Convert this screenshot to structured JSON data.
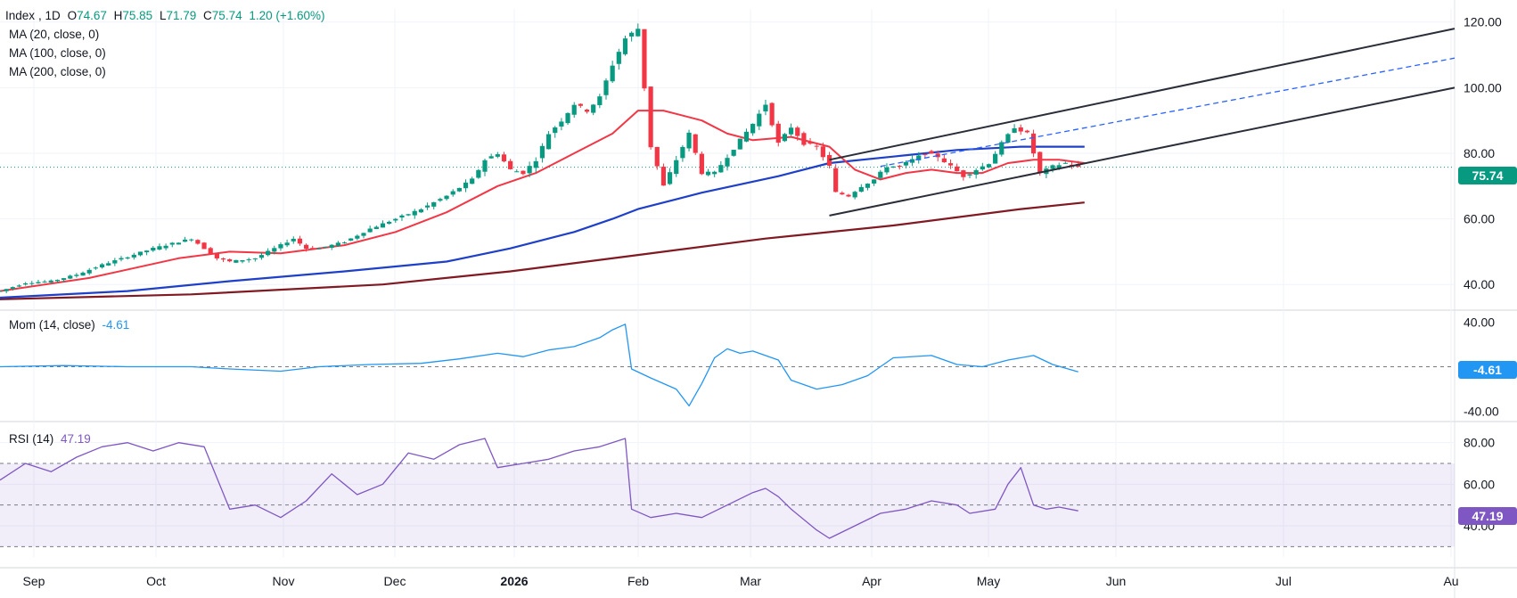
{
  "symbol": "Index",
  "interval": "1D",
  "ohlc": {
    "open_label": "O",
    "open": "74.67",
    "high_label": "H",
    "high": "75.85",
    "low_label": "L",
    "low": "71.79",
    "close_label": "C",
    "close": "75.74",
    "change": "1.20 (+1.60%)"
  },
  "indicators": {
    "ma20": "MA (20, close, 0)",
    "ma100": "MA (100, close, 0)",
    "ma200": "MA (200, close, 0)",
    "mom_label": "Mom (14, close)",
    "mom_value": "-4.61",
    "rsi_label": "RSI (14)",
    "rsi_value": "47.19"
  },
  "price_label": "75.74",
  "mom_label_value": "-4.61",
  "rsi_label_value": "47.19",
  "colors": {
    "up": "#089981",
    "down": "#f23645",
    "ma20": "#f23645",
    "ma100": "#1e40c8",
    "ma200": "#801922",
    "momentum": "#2196f3",
    "rsi": "#7e57c2",
    "channel": "#2a2e39",
    "channel_mid": "#2962ff"
  },
  "chart_data": [
    {
      "type": "candlestick",
      "name": "Index",
      "x_axis_labels": [
        "Sep",
        "Oct",
        "Nov",
        "Dec",
        "2026",
        "Feb",
        "Mar",
        "Apr",
        "May",
        "Jun",
        "Jul",
        "Au"
      ],
      "y_ticks": [
        40,
        60,
        80,
        100,
        120
      ],
      "ylim": [
        33,
        124
      ],
      "last_close": 75.74,
      "price_series": [
        [
          0,
          38
        ],
        [
          4,
          40.5
        ],
        [
          8,
          41
        ],
        [
          12,
          43
        ],
        [
          16,
          46
        ],
        [
          20,
          48.5
        ],
        [
          24,
          51
        ],
        [
          28,
          53
        ],
        [
          30,
          54
        ],
        [
          32,
          51
        ],
        [
          34,
          48
        ],
        [
          36,
          47
        ],
        [
          40,
          48
        ],
        [
          42,
          50
        ],
        [
          44,
          52
        ],
        [
          46,
          54
        ],
        [
          48,
          51
        ],
        [
          50,
          51
        ],
        [
          54,
          53
        ],
        [
          58,
          57
        ],
        [
          62,
          60
        ],
        [
          66,
          63
        ],
        [
          70,
          67
        ],
        [
          74,
          72
        ],
        [
          76,
          78
        ],
        [
          78,
          80
        ],
        [
          80,
          75
        ],
        [
          82,
          74
        ],
        [
          84,
          78
        ],
        [
          86,
          86
        ],
        [
          88,
          90
        ],
        [
          90,
          95
        ],
        [
          92,
          93
        ],
        [
          94,
          97
        ],
        [
          96,
          107
        ],
        [
          98,
          115
        ],
        [
          100,
          118
        ],
        [
          102,
          82
        ],
        [
          104,
          70
        ],
        [
          106,
          78
        ],
        [
          108,
          86
        ],
        [
          110,
          74
        ],
        [
          112,
          74
        ],
        [
          114,
          79
        ],
        [
          116,
          84
        ],
        [
          118,
          89
        ],
        [
          120,
          95
        ],
        [
          122,
          83
        ],
        [
          124,
          88
        ],
        [
          126,
          83
        ],
        [
          128,
          82
        ],
        [
          130,
          76
        ],
        [
          131,
          68
        ],
        [
          133,
          67
        ],
        [
          135,
          70
        ],
        [
          137,
          72
        ],
        [
          139,
          76
        ],
        [
          141,
          76
        ],
        [
          143,
          78
        ],
        [
          145,
          80
        ],
        [
          147,
          79
        ],
        [
          149,
          76
        ],
        [
          151,
          73
        ],
        [
          153,
          75
        ],
        [
          155,
          77
        ],
        [
          157,
          83
        ],
        [
          159,
          88
        ],
        [
          161,
          86
        ],
        [
          163,
          74
        ],
        [
          165,
          76
        ],
        [
          167,
          77
        ],
        [
          169,
          75.7
        ]
      ],
      "x_index_range": [
        0,
        228
      ],
      "ma20": [
        [
          0,
          38
        ],
        [
          14,
          42
        ],
        [
          28,
          48
        ],
        [
          36,
          50
        ],
        [
          44,
          49.5
        ],
        [
          54,
          52
        ],
        [
          62,
          56
        ],
        [
          70,
          62
        ],
        [
          78,
          70
        ],
        [
          84,
          74
        ],
        [
          90,
          80
        ],
        [
          96,
          86
        ],
        [
          100,
          93
        ],
        [
          104,
          93
        ],
        [
          110,
          90
        ],
        [
          114,
          86
        ],
        [
          118,
          84
        ],
        [
          124,
          85
        ],
        [
          130,
          82
        ],
        [
          134,
          75
        ],
        [
          138,
          72
        ],
        [
          142,
          74
        ],
        [
          146,
          75
        ],
        [
          150,
          74
        ],
        [
          154,
          74
        ],
        [
          158,
          77
        ],
        [
          162,
          78
        ],
        [
          166,
          78
        ],
        [
          170,
          77
        ]
      ],
      "ma100": [
        [
          0,
          36
        ],
        [
          20,
          38
        ],
        [
          36,
          41
        ],
        [
          54,
          44
        ],
        [
          70,
          47
        ],
        [
          80,
          51
        ],
        [
          90,
          56
        ],
        [
          96,
          60
        ],
        [
          100,
          63
        ],
        [
          110,
          68
        ],
        [
          122,
          73
        ],
        [
          130,
          77
        ],
        [
          140,
          79
        ],
        [
          150,
          81
        ],
        [
          160,
          82
        ],
        [
          170,
          82
        ]
      ],
      "ma200": [
        [
          0,
          35.5
        ],
        [
          30,
          37
        ],
        [
          60,
          40
        ],
        [
          80,
          44
        ],
        [
          100,
          49
        ],
        [
          120,
          54
        ],
        [
          140,
          58
        ],
        [
          160,
          63
        ],
        [
          170,
          65
        ]
      ],
      "channel_upper": [
        [
          130,
          78
        ],
        [
          228,
          118
        ]
      ],
      "channel_lower": [
        [
          130,
          61
        ],
        [
          228,
          100
        ]
      ],
      "channel_mid_dashed": [
        [
          138,
          76
        ],
        [
          228,
          109
        ]
      ]
    },
    {
      "type": "line",
      "name": "Mom (14, close)",
      "y_ticks": [
        -40,
        40
      ],
      "ylim": [
        -45,
        45
      ],
      "last_value": -4.61,
      "values": [
        [
          0,
          0
        ],
        [
          10,
          1
        ],
        [
          20,
          0
        ],
        [
          30,
          0
        ],
        [
          36,
          -2
        ],
        [
          44,
          -4
        ],
        [
          50,
          0
        ],
        [
          58,
          2
        ],
        [
          66,
          3
        ],
        [
          72,
          7
        ],
        [
          78,
          12
        ],
        [
          82,
          9
        ],
        [
          86,
          15
        ],
        [
          90,
          18
        ],
        [
          94,
          26
        ],
        [
          96,
          33
        ],
        [
          98,
          38
        ],
        [
          99,
          -2
        ],
        [
          102,
          -10
        ],
        [
          106,
          -20
        ],
        [
          108,
          -35
        ],
        [
          110,
          -15
        ],
        [
          112,
          8
        ],
        [
          114,
          16
        ],
        [
          116,
          12
        ],
        [
          118,
          14
        ],
        [
          122,
          6
        ],
        [
          124,
          -12
        ],
        [
          128,
          -20
        ],
        [
          132,
          -16
        ],
        [
          136,
          -8
        ],
        [
          140,
          8
        ],
        [
          146,
          10
        ],
        [
          150,
          2
        ],
        [
          154,
          0
        ],
        [
          158,
          6
        ],
        [
          162,
          10
        ],
        [
          165,
          2
        ],
        [
          169,
          -4.61
        ]
      ]
    },
    {
      "type": "line",
      "name": "RSI (14)",
      "y_ticks": [
        40,
        60,
        80
      ],
      "bands": [
        30,
        50,
        70
      ],
      "ylim": [
        25,
        88
      ],
      "last_value": 47.19,
      "values": [
        [
          0,
          62
        ],
        [
          4,
          70
        ],
        [
          8,
          66
        ],
        [
          12,
          73
        ],
        [
          16,
          78
        ],
        [
          20,
          80
        ],
        [
          24,
          76
        ],
        [
          28,
          80
        ],
        [
          32,
          78
        ],
        [
          36,
          48
        ],
        [
          40,
          50
        ],
        [
          44,
          44
        ],
        [
          48,
          52
        ],
        [
          52,
          65
        ],
        [
          56,
          55
        ],
        [
          60,
          60
        ],
        [
          64,
          75
        ],
        [
          68,
          72
        ],
        [
          72,
          79
        ],
        [
          76,
          82
        ],
        [
          78,
          68
        ],
        [
          82,
          70
        ],
        [
          86,
          72
        ],
        [
          90,
          76
        ],
        [
          94,
          78
        ],
        [
          98,
          82
        ],
        [
          99,
          48
        ],
        [
          102,
          44
        ],
        [
          106,
          46
        ],
        [
          110,
          44
        ],
        [
          114,
          50
        ],
        [
          118,
          56
        ],
        [
          120,
          58
        ],
        [
          122,
          54
        ],
        [
          124,
          48
        ],
        [
          128,
          38
        ],
        [
          130,
          34
        ],
        [
          134,
          40
        ],
        [
          138,
          46
        ],
        [
          142,
          48
        ],
        [
          146,
          52
        ],
        [
          150,
          50
        ],
        [
          152,
          46
        ],
        [
          156,
          48
        ],
        [
          158,
          60
        ],
        [
          160,
          68
        ],
        [
          162,
          50
        ],
        [
          164,
          48
        ],
        [
          166,
          49
        ],
        [
          169,
          47.19
        ]
      ]
    }
  ]
}
